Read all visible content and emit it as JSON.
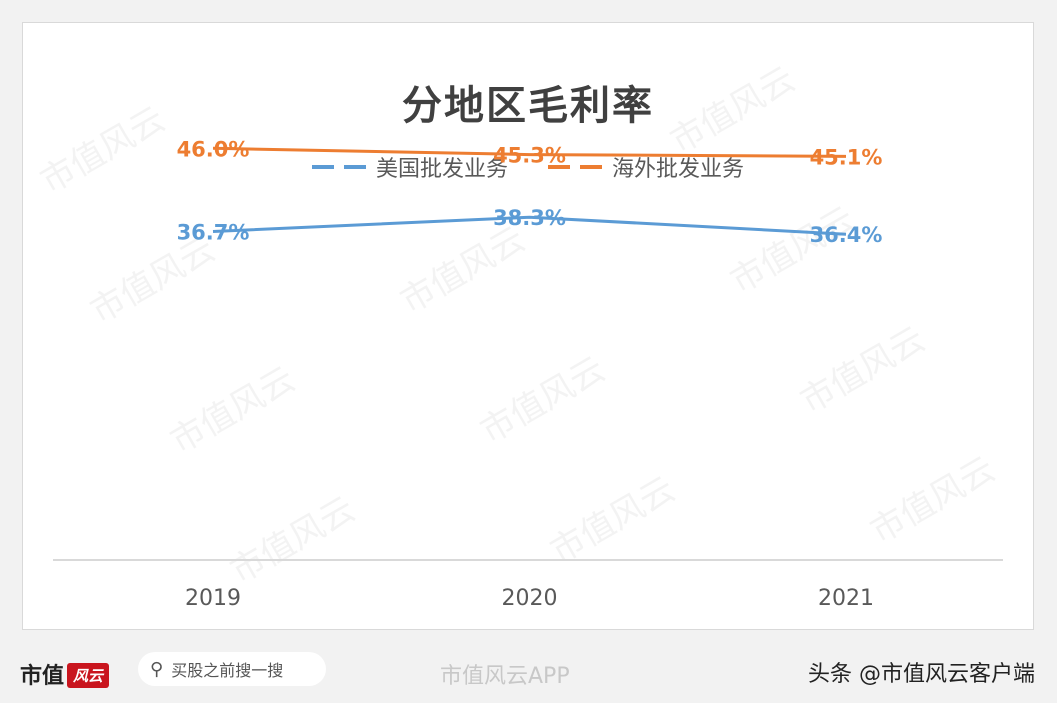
{
  "chart_data": {
    "type": "line",
    "title": "分地区毛利率",
    "categories": [
      "2019",
      "2020",
      "2021"
    ],
    "series": [
      {
        "name": "美国批发业务",
        "values": [
          36.7,
          38.3,
          36.4
        ],
        "labels": [
          "36.7%",
          "38.3%",
          "36.4%"
        ],
        "color": "#5b9bd5"
      },
      {
        "name": "海外批发业务",
        "values": [
          46.0,
          45.3,
          45.1
        ],
        "labels": [
          "46.0%",
          "45.3%",
          "45.1%"
        ],
        "color": "#ed7d31"
      }
    ],
    "ylim": [
      0,
      60
    ],
    "grid": false,
    "legend": "top-center",
    "xlabel": "",
    "ylabel": ""
  },
  "watermark": "市值风云",
  "footer": {
    "brand": "市值",
    "brand_mark": "风云",
    "search_text": "买股之前搜一搜",
    "app_watermark": "市值风云APP",
    "toutiao": "头条 @市值风云客户端"
  }
}
